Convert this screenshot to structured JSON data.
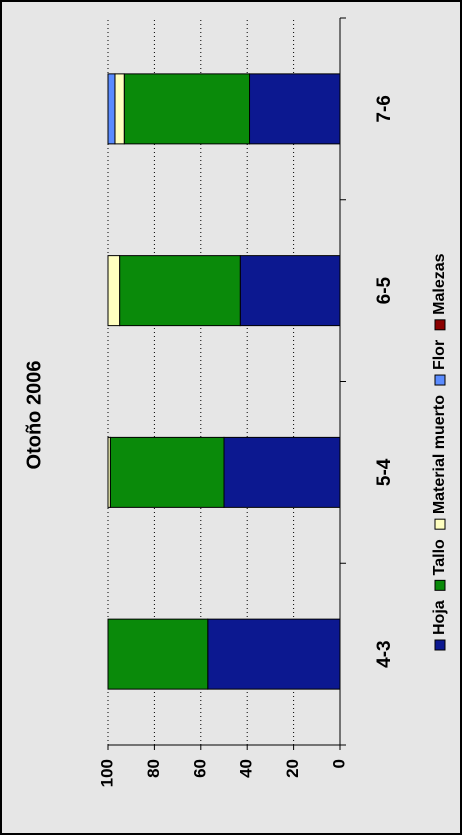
{
  "chart_data": {
    "type": "stacked_bar",
    "title": "Otoño 2006",
    "categories": [
      "4-3",
      "5-4",
      "6-5",
      "7-6"
    ],
    "series": [
      {
        "name": "Hoja",
        "color": "#0c1890",
        "values": [
          57,
          50,
          43,
          39
        ]
      },
      {
        "name": "Tallo",
        "color": "#0a8a0a",
        "values": [
          43,
          49,
          52,
          54
        ]
      },
      {
        "name": "Material muerto",
        "color": "#ffffc0",
        "values": [
          0,
          1,
          5,
          4
        ]
      },
      {
        "name": "Flor",
        "color": "#5b8cff",
        "values": [
          0,
          0,
          0,
          3
        ]
      },
      {
        "name": "Malezas",
        "color": "#8b0000",
        "values": [
          0,
          0,
          0,
          0
        ]
      }
    ],
    "ylim": [
      0,
      100
    ],
    "yticks": [
      0,
      20,
      40,
      60,
      80,
      100
    ],
    "grid": true,
    "legend": "bottom"
  }
}
